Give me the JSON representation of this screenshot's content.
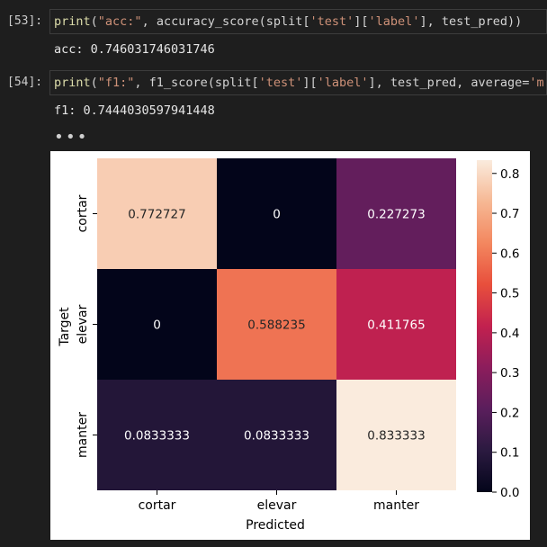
{
  "cells": [
    {
      "prompt": "[53]:",
      "code": {
        "fn": "print",
        "open": "(",
        "str1": "\"acc:\"",
        "rest1": ", accuracy_score(split[",
        "str2": "'test'",
        "mid2": "][",
        "str3": "'label'",
        "rest2": "], test_pred))"
      },
      "output": "acc: 0.746031746031746"
    },
    {
      "prompt": "[54]:",
      "code": {
        "fn": "print",
        "open": "(",
        "str1": "\"f1:\"",
        "rest1": ", f1_score(split[",
        "str2": "'test'",
        "mid2": "][",
        "str3": "'label'",
        "rest2": "], test_pred, average=",
        "str4": "'m"
      },
      "output": "f1: 0.7444030597941448"
    }
  ],
  "ellipsis": "•••",
  "chart_data": {
    "type": "heatmap",
    "rows": [
      "cortar",
      "elevar",
      "manter"
    ],
    "cols": [
      "cortar",
      "elevar",
      "manter"
    ],
    "values": [
      [
        0.772727,
        0,
        0.227273
      ],
      [
        0,
        0.588235,
        0.411765
      ],
      [
        0.0833333,
        0.0833333,
        0.833333
      ]
    ],
    "labels": [
      [
        "0.772727",
        "0",
        "0.227273"
      ],
      [
        "0",
        "0.588235",
        "0.411765"
      ],
      [
        "0.0833333",
        "0.0833333",
        "0.833333"
      ]
    ],
    "xlabel": "Predicted",
    "ylabel": "Target",
    "colorbar": {
      "min": 0,
      "max": 0.833333,
      "ticks": [
        "0.0",
        "0.1",
        "0.2",
        "0.3",
        "0.4",
        "0.5",
        "0.6",
        "0.7",
        "0.8"
      ]
    },
    "colormap": "rocket"
  }
}
